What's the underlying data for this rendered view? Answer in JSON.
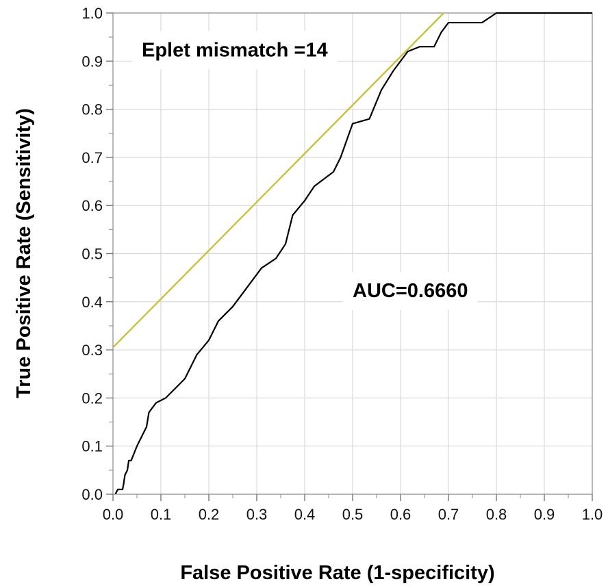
{
  "chart_data": {
    "type": "line",
    "title": "",
    "xlabel": "False Positive Rate (1-specificity)",
    "ylabel": "True Positive Rate (Sensitivity)",
    "xlim": [
      0,
      1
    ],
    "ylim": [
      0,
      1
    ],
    "x_ticks": [
      "0.0",
      "0.1",
      "0.2",
      "0.3",
      "0.4",
      "0.5",
      "0.6",
      "0.7",
      "0.8",
      "0.9",
      "1.0"
    ],
    "y_ticks": [
      "0.0",
      "0.1",
      "0.2",
      "0.3",
      "0.4",
      "0.5",
      "0.6",
      "0.7",
      "0.8",
      "0.9",
      "1.0"
    ],
    "grid": true,
    "annotations": [
      {
        "text": "Eplet mismatch =14",
        "x": 0.06,
        "y": 0.91
      },
      {
        "text": "AUC=0.6660",
        "x": 0.5,
        "y": 0.41
      }
    ],
    "series": [
      {
        "color": "#000000",
        "x": [
          0.005,
          0.01,
          0.02,
          0.022,
          0.025,
          0.03,
          0.033,
          0.038,
          0.05,
          0.055,
          0.065,
          0.07,
          0.075,
          0.09,
          0.11,
          0.13,
          0.15,
          0.175,
          0.2,
          0.22,
          0.25,
          0.28,
          0.31,
          0.34,
          0.36,
          0.375,
          0.4,
          0.42,
          0.46,
          0.475,
          0.5,
          0.535,
          0.56,
          0.585,
          0.615,
          0.64,
          0.67,
          0.685,
          0.7,
          0.715,
          0.77,
          0.8,
          0.81,
          1.0
        ],
        "y": [
          0.0,
          0.01,
          0.01,
          0.02,
          0.04,
          0.05,
          0.07,
          0.07,
          0.1,
          0.11,
          0.13,
          0.14,
          0.17,
          0.19,
          0.2,
          0.22,
          0.24,
          0.29,
          0.32,
          0.36,
          0.39,
          0.43,
          0.47,
          0.49,
          0.52,
          0.58,
          0.61,
          0.64,
          0.67,
          0.7,
          0.77,
          0.78,
          0.84,
          0.88,
          0.92,
          0.93,
          0.93,
          0.96,
          0.98,
          0.98,
          0.98,
          1.0,
          1.0,
          1.0
        ]
      },
      {
        "color": "#c8c23a",
        "x": [
          0.0,
          0.69
        ],
        "y": [
          0.305,
          1.0
        ]
      }
    ]
  }
}
